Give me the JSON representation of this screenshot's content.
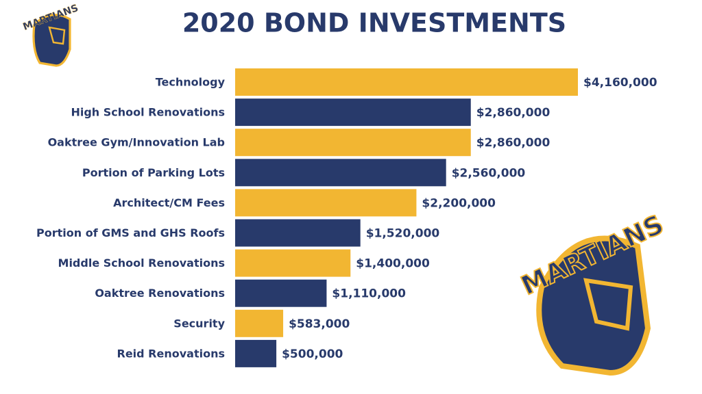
{
  "chart_data": {
    "type": "barh",
    "title": "2020 BOND INVESTMENTS",
    "logo_text": "MARTIANS",
    "categories": [
      "Technology",
      "High School Renovations",
      "Oaktree Gym/Innovation Lab",
      "Portion of Parking Lots",
      "Architect/CM Fees",
      "Portion of GMS and GHS Roofs",
      "Middle School Renovations",
      "Oaktree Renovations",
      "Security",
      "Reid Renovations"
    ],
    "values": [
      4160000,
      2860000,
      2860000,
      2560000,
      2200000,
      1520000,
      1400000,
      1110000,
      583000,
      500000
    ],
    "value_labels": [
      "$4,160,000",
      "$2,860,000",
      "$2,860,000",
      "$2,560,000",
      "$2,200,000",
      "$1,520,000",
      "$1,400,000",
      "$1,110,000",
      "$583,000",
      "$500,000"
    ],
    "colors": [
      "#f2b632",
      "#283a6b",
      "#f2b632",
      "#283a6b",
      "#f2b632",
      "#283a6b",
      "#f2b632",
      "#283a6b",
      "#f2b632",
      "#283a6b"
    ],
    "xlim": [
      0,
      4160000
    ]
  }
}
